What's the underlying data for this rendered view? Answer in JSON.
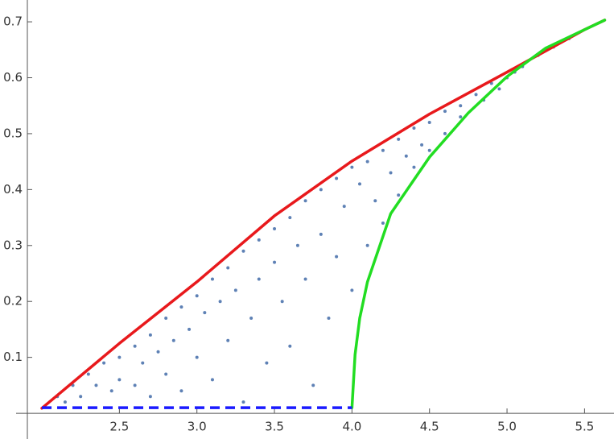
{
  "chart_data": {
    "type": "scatter",
    "xlim": [
      1.73,
      5.69
    ],
    "ylim": [
      -0.046,
      0.739
    ],
    "xticks": [
      2.5,
      {
        "value": 3,
        "label": "3.0"
      },
      3.5,
      {
        "value": 4,
        "label": "4.0"
      },
      4.5,
      {
        "value": 5,
        "label": "5.0"
      },
      5.5
    ],
    "yticks": [
      0.1,
      0.2,
      0.3,
      0.4,
      0.5,
      0.6,
      0.7
    ],
    "series": [
      {
        "style": "points",
        "color": "#5e81b5",
        "x": [
          2.1,
          2.15,
          2.2,
          2.25,
          2.3,
          2.35,
          2.4,
          2.45,
          2.5,
          2.5,
          2.6,
          2.6,
          2.65,
          2.7,
          2.7,
          2.75,
          2.8,
          2.8,
          2.85,
          2.9,
          2.9,
          2.95,
          3.0,
          3.0,
          3.05,
          3.1,
          3.1,
          3.15,
          3.2,
          3.2,
          3.25,
          3.3,
          3.3,
          3.35,
          3.4,
          3.4,
          3.45,
          3.5,
          3.5,
          3.55,
          3.6,
          3.6,
          3.65,
          3.7,
          3.7,
          3.75,
          3.8,
          3.8,
          3.85,
          3.9,
          3.9,
          3.95,
          4.0,
          4.0,
          4.05,
          4.1,
          4.1,
          4.15,
          4.2,
          4.2,
          4.25,
          4.3,
          4.3,
          4.35,
          4.4,
          4.4,
          4.45,
          4.5,
          4.5,
          4.6,
          4.6,
          4.7,
          4.7,
          4.8,
          4.85,
          4.9,
          4.95,
          5.0,
          5.05,
          5.1,
          5.2,
          5.3,
          5.4
        ],
        "values": [
          0.03,
          0.02,
          0.05,
          0.03,
          0.07,
          0.05,
          0.09,
          0.04,
          0.1,
          0.06,
          0.12,
          0.05,
          0.09,
          0.14,
          0.03,
          0.11,
          0.17,
          0.07,
          0.13,
          0.19,
          0.04,
          0.15,
          0.21,
          0.1,
          0.18,
          0.24,
          0.06,
          0.2,
          0.26,
          0.13,
          0.22,
          0.29,
          0.02,
          0.17,
          0.31,
          0.24,
          0.09,
          0.33,
          0.27,
          0.2,
          0.35,
          0.12,
          0.3,
          0.38,
          0.24,
          0.05,
          0.4,
          0.32,
          0.17,
          0.42,
          0.28,
          0.37,
          0.44,
          0.22,
          0.41,
          0.45,
          0.3,
          0.38,
          0.47,
          0.34,
          0.43,
          0.49,
          0.39,
          0.46,
          0.51,
          0.44,
          0.48,
          0.52,
          0.47,
          0.54,
          0.5,
          0.55,
          0.53,
          0.57,
          0.56,
          0.59,
          0.58,
          0.6,
          0.61,
          0.62,
          0.64,
          0.655,
          0.67
        ]
      },
      {
        "style": "solid",
        "color": "#e8191c",
        "x": [
          2.0,
          2.5,
          3.0,
          3.5,
          4.0,
          4.5,
          5.0,
          5.5,
          5.63
        ],
        "values": [
          0.009,
          0.125,
          0.235,
          0.353,
          0.451,
          0.535,
          0.61,
          0.686,
          0.703
        ]
      },
      {
        "style": "solid",
        "color": "#22dd22",
        "x": [
          4.0,
          4.02,
          4.05,
          4.1,
          4.25,
          4.5,
          4.75,
          5.0,
          5.25,
          5.5,
          5.63
        ],
        "values": [
          0.01,
          0.105,
          0.17,
          0.235,
          0.357,
          0.458,
          0.537,
          0.602,
          0.653,
          0.686,
          0.703
        ]
      },
      {
        "style": "dashed",
        "color": "#1a1aff",
        "x": [
          2.0,
          4.0
        ],
        "values": [
          0.01,
          0.01
        ]
      }
    ]
  }
}
